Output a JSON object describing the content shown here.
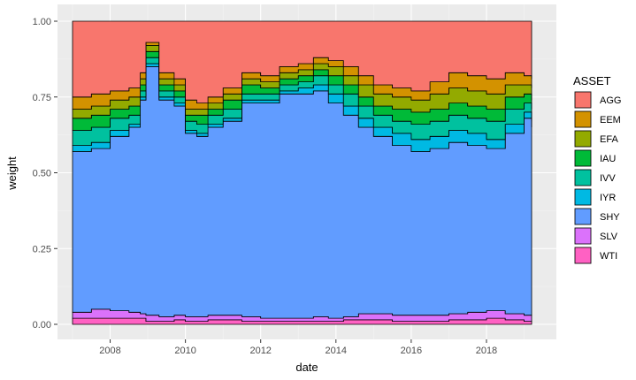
{
  "chart_data": {
    "type": "area",
    "stacked": true,
    "step": true,
    "xlabel": "date",
    "ylabel": "weight",
    "xlim": [
      2007.0,
      2019.2
    ],
    "ylim": [
      0,
      1
    ],
    "x_ticks": [
      2008,
      2010,
      2012,
      2014,
      2016,
      2018
    ],
    "x_tick_labels": [
      "2008",
      "2010",
      "2012",
      "2014",
      "2016",
      "2018"
    ],
    "y_ticks": [
      0,
      0.25,
      0.5,
      0.75,
      1.0
    ],
    "y_tick_labels": [
      "0.00",
      "0.25",
      "0.50",
      "0.75",
      "1.00"
    ],
    "grid": true,
    "legend_position": "right",
    "legend_title": "ASSET",
    "stack_order_bottom_to_top": [
      "WTI",
      "SLV",
      "SHY",
      "IYR",
      "IVV",
      "IAU",
      "EFA",
      "EEM",
      "AGG"
    ],
    "cumulative_note": "values are cumulative top-of-band weights per series at each x",
    "x": [
      2007.0,
      2007.5,
      2008.0,
      2008.5,
      2008.8,
      2008.95,
      2009.3,
      2009.7,
      2010.0,
      2010.3,
      2010.6,
      2011.0,
      2011.5,
      2012.0,
      2012.5,
      2013.0,
      2013.4,
      2013.8,
      2014.2,
      2014.6,
      2015.0,
      2015.5,
      2016.0,
      2016.5,
      2017.0,
      2017.5,
      2018.0,
      2018.5,
      2019.0,
      2019.2
    ],
    "series": [
      {
        "name": "WTI",
        "color": "#ff61c3",
        "cum": [
          0.02,
          0.02,
          0.02,
          0.02,
          0.02,
          0.01,
          0.01,
          0.015,
          0.01,
          0.01,
          0.015,
          0.015,
          0.01,
          0.01,
          0.01,
          0.01,
          0.01,
          0.01,
          0.015,
          0.015,
          0.015,
          0.01,
          0.01,
          0.01,
          0.015,
          0.015,
          0.02,
          0.015,
          0.01,
          0.01
        ]
      },
      {
        "name": "SLV",
        "color": "#db72fb",
        "cum": [
          0.04,
          0.05,
          0.045,
          0.04,
          0.035,
          0.03,
          0.025,
          0.03,
          0.025,
          0.025,
          0.03,
          0.03,
          0.025,
          0.02,
          0.02,
          0.02,
          0.025,
          0.02,
          0.025,
          0.035,
          0.035,
          0.03,
          0.03,
          0.03,
          0.035,
          0.04,
          0.045,
          0.035,
          0.03,
          0.03
        ]
      },
      {
        "name": "SHY",
        "color": "#619cff",
        "cum": [
          0.57,
          0.58,
          0.62,
          0.65,
          0.74,
          0.85,
          0.74,
          0.72,
          0.63,
          0.62,
          0.65,
          0.67,
          0.73,
          0.73,
          0.76,
          0.76,
          0.77,
          0.73,
          0.69,
          0.65,
          0.62,
          0.59,
          0.57,
          0.58,
          0.6,
          0.59,
          0.58,
          0.63,
          0.68,
          0.65
        ]
      },
      {
        "name": "IYR",
        "color": "#00b9e3",
        "cum": [
          0.59,
          0.6,
          0.64,
          0.66,
          0.75,
          0.86,
          0.75,
          0.73,
          0.64,
          0.63,
          0.66,
          0.68,
          0.74,
          0.74,
          0.77,
          0.78,
          0.79,
          0.76,
          0.72,
          0.68,
          0.65,
          0.63,
          0.61,
          0.62,
          0.64,
          0.63,
          0.61,
          0.66,
          0.7,
          0.67
        ]
      },
      {
        "name": "IVV",
        "color": "#00c19f",
        "cum": [
          0.64,
          0.65,
          0.68,
          0.69,
          0.77,
          0.88,
          0.77,
          0.75,
          0.67,
          0.66,
          0.69,
          0.71,
          0.76,
          0.76,
          0.79,
          0.8,
          0.82,
          0.79,
          0.76,
          0.72,
          0.69,
          0.67,
          0.66,
          0.67,
          0.69,
          0.68,
          0.67,
          0.71,
          0.73,
          0.71
        ]
      },
      {
        "name": "IAU",
        "color": "#00ba38",
        "cum": [
          0.68,
          0.69,
          0.71,
          0.72,
          0.79,
          0.9,
          0.79,
          0.77,
          0.69,
          0.69,
          0.71,
          0.74,
          0.79,
          0.78,
          0.81,
          0.82,
          0.84,
          0.82,
          0.79,
          0.75,
          0.72,
          0.71,
          0.7,
          0.71,
          0.73,
          0.72,
          0.71,
          0.75,
          0.76,
          0.74
        ]
      },
      {
        "name": "EFA",
        "color": "#93aa00",
        "cum": [
          0.71,
          0.72,
          0.74,
          0.75,
          0.81,
          0.92,
          0.81,
          0.79,
          0.71,
          0.71,
          0.73,
          0.76,
          0.81,
          0.8,
          0.83,
          0.84,
          0.86,
          0.85,
          0.82,
          0.79,
          0.76,
          0.75,
          0.74,
          0.76,
          0.78,
          0.77,
          0.76,
          0.79,
          0.79,
          0.78
        ]
      },
      {
        "name": "EEM",
        "color": "#d39200",
        "cum": [
          0.75,
          0.76,
          0.77,
          0.78,
          0.83,
          0.93,
          0.83,
          0.81,
          0.74,
          0.73,
          0.75,
          0.78,
          0.83,
          0.82,
          0.85,
          0.86,
          0.88,
          0.87,
          0.85,
          0.82,
          0.79,
          0.78,
          0.77,
          0.8,
          0.83,
          0.82,
          0.81,
          0.83,
          0.82,
          0.81
        ]
      },
      {
        "name": "AGG",
        "color": "#f8766d",
        "cum": [
          1,
          1,
          1,
          1,
          1,
          1,
          1,
          1,
          1,
          1,
          1,
          1,
          1,
          1,
          1,
          1,
          1,
          1,
          1,
          1,
          1,
          1,
          1,
          1,
          1,
          1,
          1,
          1,
          1,
          1
        ]
      }
    ]
  },
  "legend": {
    "title": "ASSET",
    "items": [
      {
        "label": "AGG",
        "color": "#f8766d"
      },
      {
        "label": "EEM",
        "color": "#d39200"
      },
      {
        "label": "EFA",
        "color": "#93aa00"
      },
      {
        "label": "IAU",
        "color": "#00ba38"
      },
      {
        "label": "IVV",
        "color": "#00c19f"
      },
      {
        "label": "IYR",
        "color": "#00b9e3"
      },
      {
        "label": "SHY",
        "color": "#619cff"
      },
      {
        "label": "SLV",
        "color": "#db72fb"
      },
      {
        "label": "WTI",
        "color": "#ff61c3"
      }
    ]
  }
}
